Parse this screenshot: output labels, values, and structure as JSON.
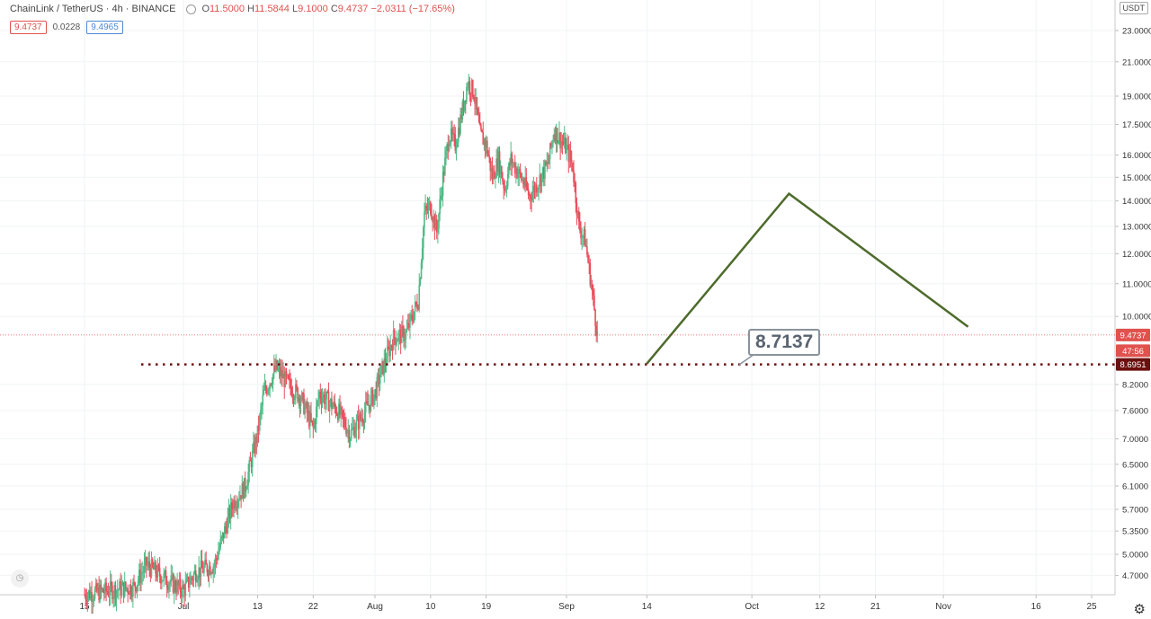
{
  "header": {
    "symbol": "ChainLink / TetherUS · 4h · BINANCE",
    "o_label": "O",
    "o": "11.5000",
    "h_label": "H",
    "h": "11.5844",
    "l_label": "L",
    "l": "9.1000",
    "c_label": "C",
    "c": "9.4737",
    "change": "−2.0311 (−17.65%)"
  },
  "values_row": {
    "price": "9.4737",
    "spread": "0.0228",
    "ask": "9.4965"
  },
  "currency_badge": "USDT",
  "annotation": {
    "text": "8.7137"
  },
  "colors": {
    "up": "#53b987",
    "down": "#eb4d5c",
    "arrow_line": "#4e6b2c",
    "support_line": "#6b0f0f"
  },
  "chart_data": {
    "type": "candlestick",
    "price_scale": "log",
    "y_ticks": [
      "23.0000",
      "21.0000",
      "19.0000",
      "17.5000",
      "16.0000",
      "15.0000",
      "14.0000",
      "13.0000",
      "12.0000",
      "11.0000",
      "10.0000",
      "8.2000",
      "7.6000",
      "7.0000",
      "6.5000",
      "6.1000",
      "5.7000",
      "5.3500",
      "5.0000",
      "4.7000"
    ],
    "x_ticks": [
      "15",
      "Jul",
      "13",
      "22",
      "Aug",
      "10",
      "19",
      "Sep",
      "14",
      "Oct",
      "12",
      "21",
      "Nov",
      "16",
      "25"
    ],
    "price_labels": [
      {
        "text": "9.4737",
        "value": 9.4737,
        "bg": "#e0524e"
      },
      {
        "text": "47:56",
        "value": 9.05,
        "bg": "#e0524e"
      },
      {
        "text": "8.6951",
        "value": 8.6951,
        "bg": "#6b0f0f"
      }
    ],
    "current_price": 9.4737,
    "support_level": 8.6951,
    "projection_path": [
      {
        "date": "2020-09-14",
        "price": 8.7137
      },
      {
        "date": "2020-10-07",
        "price": 14.3
      },
      {
        "date": "2020-11-05",
        "price": 9.7
      }
    ],
    "price_path": [
      {
        "date": "2020-06-15",
        "price": 4.45
      },
      {
        "date": "2020-06-23",
        "price": 4.55
      },
      {
        "date": "2020-06-25",
        "price": 4.85
      },
      {
        "date": "2020-06-29",
        "price": 4.6
      },
      {
        "date": "2020-07-01",
        "price": 4.5
      },
      {
        "date": "2020-07-03",
        "price": 4.75
      },
      {
        "date": "2020-07-06",
        "price": 4.85
      },
      {
        "date": "2020-07-09",
        "price": 5.8
      },
      {
        "date": "2020-07-11",
        "price": 6.1
      },
      {
        "date": "2020-07-13",
        "price": 7.1
      },
      {
        "date": "2020-07-14",
        "price": 8.0
      },
      {
        "date": "2020-07-16",
        "price": 8.6
      },
      {
        "date": "2020-07-18",
        "price": 8.2
      },
      {
        "date": "2020-07-20",
        "price": 7.9
      },
      {
        "date": "2020-07-22",
        "price": 7.2
      },
      {
        "date": "2020-07-23",
        "price": 8.0
      },
      {
        "date": "2020-07-26",
        "price": 7.6
      },
      {
        "date": "2020-07-28",
        "price": 7.1
      },
      {
        "date": "2020-07-30",
        "price": 7.5
      },
      {
        "date": "2020-08-01",
        "price": 8.0
      },
      {
        "date": "2020-08-02",
        "price": 8.5
      },
      {
        "date": "2020-08-04",
        "price": 9.4
      },
      {
        "date": "2020-08-06",
        "price": 9.5
      },
      {
        "date": "2020-08-08",
        "price": 10.5
      },
      {
        "date": "2020-08-09",
        "price": 13.5
      },
      {
        "date": "2020-08-10",
        "price": 13.8
      },
      {
        "date": "2020-08-11",
        "price": 12.8
      },
      {
        "date": "2020-08-12",
        "price": 15.0
      },
      {
        "date": "2020-08-13",
        "price": 17.0
      },
      {
        "date": "2020-08-14",
        "price": 16.5
      },
      {
        "date": "2020-08-15",
        "price": 18.0
      },
      {
        "date": "2020-08-16",
        "price": 19.8
      },
      {
        "date": "2020-08-17",
        "price": 19.2
      },
      {
        "date": "2020-08-18",
        "price": 17.0
      },
      {
        "date": "2020-08-19",
        "price": 16.5
      },
      {
        "date": "2020-08-20",
        "price": 15.0
      },
      {
        "date": "2020-08-21",
        "price": 15.8
      },
      {
        "date": "2020-08-22",
        "price": 14.5
      },
      {
        "date": "2020-08-23",
        "price": 15.8
      },
      {
        "date": "2020-08-25",
        "price": 14.8
      },
      {
        "date": "2020-08-26",
        "price": 14.2
      },
      {
        "date": "2020-08-27",
        "price": 14.6
      },
      {
        "date": "2020-08-29",
        "price": 15.6
      },
      {
        "date": "2020-08-30",
        "price": 17.2
      },
      {
        "date": "2020-09-01",
        "price": 16.3
      },
      {
        "date": "2020-09-02",
        "price": 15.5
      },
      {
        "date": "2020-09-03",
        "price": 13.0
      },
      {
        "date": "2020-09-04",
        "price": 12.5
      },
      {
        "date": "2020-09-05",
        "price": 11.0
      },
      {
        "date": "2020-09-06",
        "price": 9.47
      }
    ]
  }
}
